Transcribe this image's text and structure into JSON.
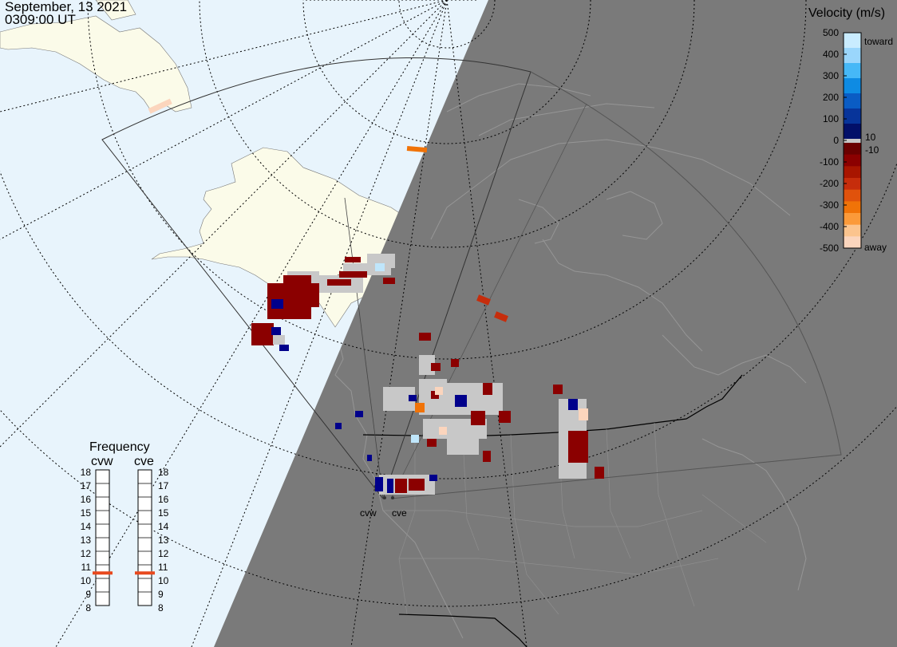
{
  "header": {
    "date": "September, 13 2021",
    "time": "0309:00 UT"
  },
  "colors": {
    "ocean": "#e8f4fc",
    "land": "#fbfbe9",
    "night": "#7a7a7a",
    "grid": "#000000",
    "noscatter": "#c8c8c8",
    "marker": "#e8491e"
  },
  "velocity_scale": {
    "title": "Velocity (m/s)",
    "ticks": [
      "500",
      "400",
      "300",
      "200",
      "100",
      "0",
      "-100",
      "-200",
      "-300",
      "-400",
      "-500"
    ],
    "positive_mark": "10",
    "negative_mark": "-10",
    "toward_label": "toward",
    "away_label": "away"
  },
  "frequency_panel": {
    "title": "Frequency",
    "radars": [
      "cvw",
      "cve"
    ],
    "levels": [
      "18",
      "17",
      "16",
      "15",
      "14",
      "13",
      "12",
      "11",
      "10",
      "9",
      "8"
    ],
    "selected_mhz": [
      10.9,
      10.9
    ]
  },
  "radar_sites": [
    {
      "label": "cvw"
    },
    {
      "label": "cve"
    }
  ],
  "icons": {
    "grid": "dotted-lat-lon-grid",
    "fov": "radar-field-of-view-outline"
  }
}
